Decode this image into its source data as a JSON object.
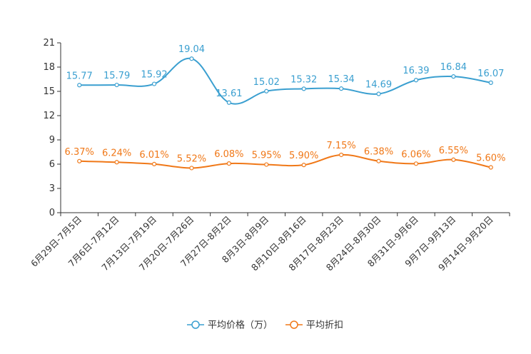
{
  "chart_data": {
    "type": "line",
    "title": "",
    "xlabel": "",
    "ylabel": "",
    "ylim": [
      0,
      21
    ],
    "yticks": [
      0,
      3,
      6,
      9,
      12,
      15,
      18,
      21
    ],
    "ytick_labels": [
      "0",
      "3",
      "6",
      "9",
      "12",
      "15",
      "18",
      "21"
    ],
    "grid": false,
    "legend_position": "bottom",
    "categories": [
      "6月29日-7月5日",
      "7月6日-7月12日",
      "7月13日-7月19日",
      "7月20日-7月26日",
      "7月27日-8月2日",
      "8月3日-8月9日",
      "8月10日-8月16日",
      "8月17日-8月23日",
      "8月24日-8月30日",
      "8月31日-9月6日",
      "9月7日-9月13日",
      "9月14日-9月20日"
    ],
    "series": [
      {
        "name": "平均价格（万）",
        "color": "#3a9fd0",
        "values": [
          15.77,
          15.79,
          15.92,
          19.04,
          13.61,
          15.02,
          15.32,
          15.34,
          14.69,
          16.39,
          16.84,
          16.07
        ],
        "labels": [
          "15.77",
          "15.79",
          "15.92",
          "19.04",
          "13.61",
          "15.02",
          "15.32",
          "15.34",
          "14.69",
          "16.39",
          "16.84",
          "16.07"
        ]
      },
      {
        "name": "平均折扣",
        "color": "#f07818",
        "values": [
          6.37,
          6.24,
          6.01,
          5.52,
          6.08,
          5.95,
          5.9,
          7.15,
          6.38,
          6.06,
          6.55,
          5.6
        ],
        "labels": [
          "6.37%",
          "6.24%",
          "6.01%",
          "5.52%",
          "6.08%",
          "5.95%",
          "5.90%",
          "7.15%",
          "6.38%",
          "6.06%",
          "6.55%",
          "5.60%"
        ]
      }
    ]
  }
}
